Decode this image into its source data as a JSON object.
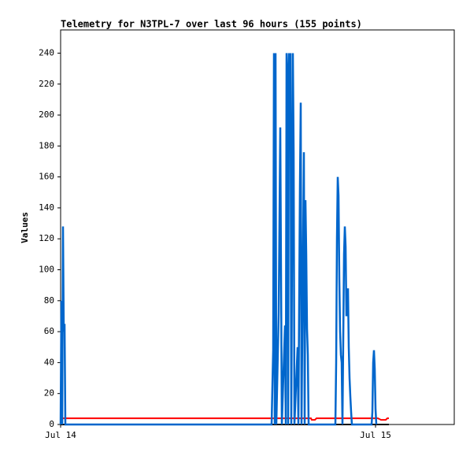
{
  "chart_data": {
    "type": "line",
    "title": "Telemetry for N3TPL-7 over last 96 hours (155 points)",
    "y_label": "Values",
    "xlim": [
      0,
      30
    ],
    "ylim": [
      0,
      255
    ],
    "xticks": [
      {
        "value": 0,
        "label": "Jul 14"
      },
      {
        "value": 24,
        "label": "Jul 15"
      }
    ],
    "yticks": [
      0,
      20,
      40,
      60,
      80,
      100,
      120,
      140,
      160,
      180,
      200,
      220,
      240
    ],
    "grid": false,
    "series": [
      {
        "color": "#000000",
        "x": [
          0,
          25.02
        ],
        "values": [
          0,
          0
        ]
      },
      {
        "color": "#ff0000",
        "x": [
          0,
          19.08,
          19.14,
          19.38,
          19.5,
          24.18,
          24.42,
          24.78,
          24.9,
          25.02
        ],
        "values": [
          4,
          4,
          3,
          3,
          4,
          4,
          3,
          3,
          4,
          4
        ]
      },
      {
        "color": "#0066cc",
        "x": [
          0,
          0.06,
          0.12,
          0.18,
          0.24,
          0.3,
          0.36,
          16.08,
          16.14,
          16.2,
          16.26,
          16.32,
          16.38,
          16.44,
          16.62,
          16.74,
          16.8,
          16.86,
          17.1,
          17.16,
          17.22,
          17.28,
          17.34,
          17.4,
          17.46,
          17.52,
          17.58,
          17.7,
          17.76,
          17.82,
          18.06,
          18.12,
          18.24,
          18.3,
          18.36,
          18.42,
          18.54,
          18.6,
          18.66,
          18.72,
          18.78,
          18.84,
          18.9,
          20.94,
          21,
          21.06,
          21.12,
          21.18,
          21.24,
          21.3,
          21.36,
          21.42,
          21.48,
          21.6,
          21.66,
          21.72,
          21.78,
          21.84,
          21.9,
          21.96,
          22.02,
          22.08,
          22.14,
          22.2,
          23.7,
          23.76,
          23.82,
          23.88,
          23.94,
          24,
          24.06
        ],
        "values": [
          0,
          80,
          0,
          128,
          60,
          65,
          0,
          0,
          25,
          48,
          240,
          0,
          240,
          0,
          72,
          192,
          96,
          0,
          64,
          0,
          240,
          225,
          0,
          240,
          200,
          240,
          0,
          240,
          176,
          0,
          50,
          0,
          155,
          208,
          0,
          60,
          176,
          0,
          145,
          110,
          62,
          45,
          0,
          0,
          40,
          120,
          160,
          148,
          94,
          60,
          45,
          40,
          0,
          110,
          128,
          115,
          70,
          80,
          88,
          50,
          30,
          18,
          8,
          0,
          0,
          8,
          40,
          48,
          36,
          10,
          0
        ]
      }
    ]
  }
}
